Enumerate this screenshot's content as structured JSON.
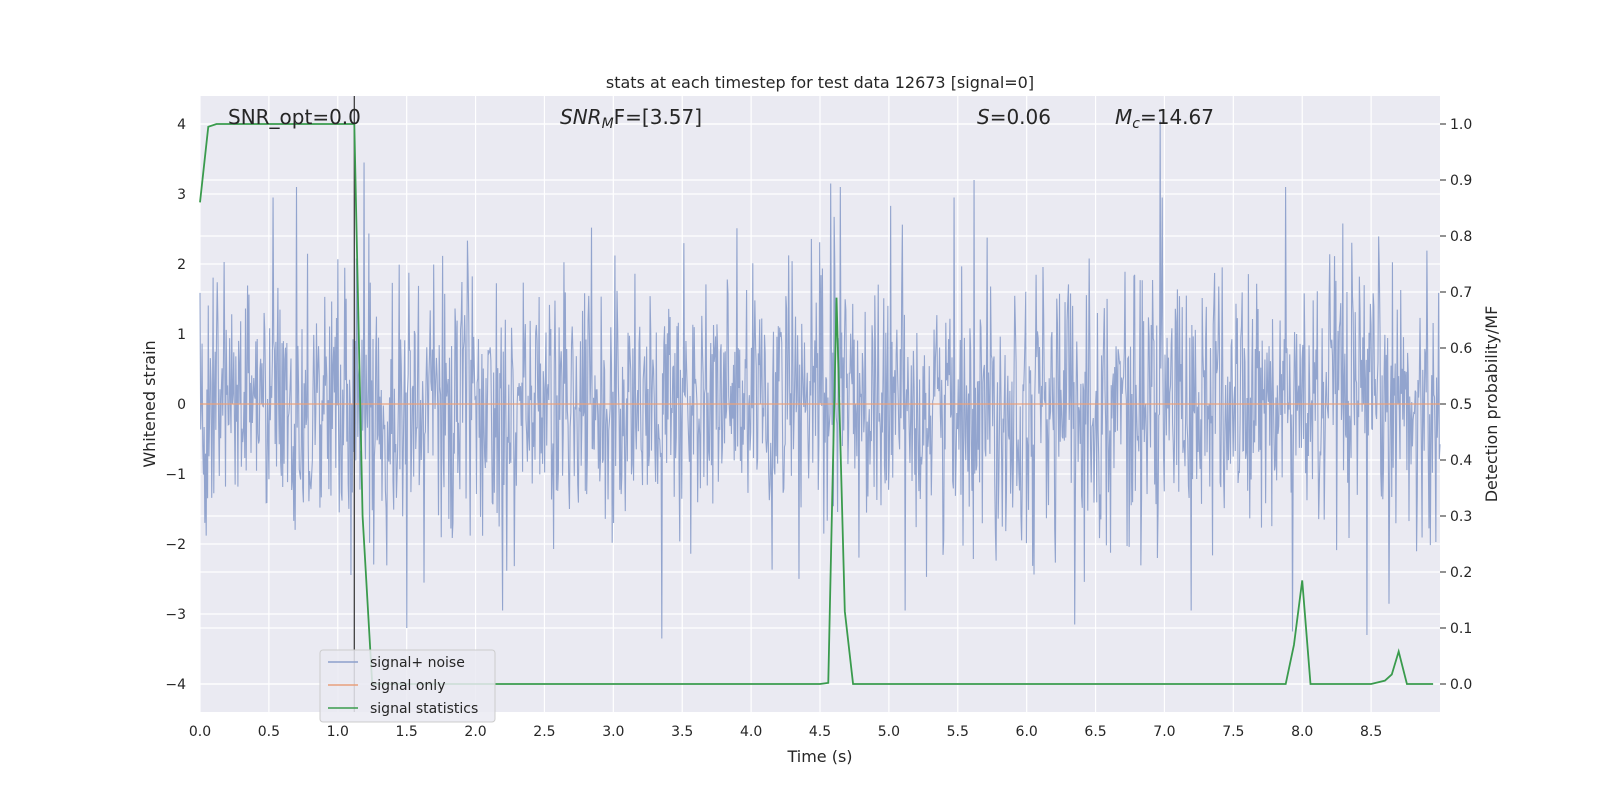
{
  "chart_data": {
    "type": "line",
    "title": "stats at each timestep for test data 12673 [signal=0]",
    "xlabel": "Time (s)",
    "ylabel_left": "Whitened strain",
    "ylabel_right": "Detection probability/MF",
    "xlim": [
      0,
      9.0
    ],
    "ylim_left": [
      -4.4,
      4.4
    ],
    "ylim_right": [
      -0.05,
      1.05
    ],
    "grid": true,
    "x_ticks": [
      "0.0",
      "0.5",
      "1.0",
      "1.5",
      "2.0",
      "2.5",
      "3.0",
      "3.5",
      "4.0",
      "4.5",
      "5.0",
      "5.5",
      "6.0",
      "6.5",
      "7.0",
      "7.5",
      "8.0",
      "8.5"
    ],
    "y_ticks_left": [
      "−4",
      "−3",
      "−2",
      "−1",
      "0",
      "1",
      "2",
      "3",
      "4"
    ],
    "y_ticks_right": [
      "0.0",
      "0.1",
      "0.2",
      "0.3",
      "0.4",
      "0.5",
      "0.6",
      "0.7",
      "0.8",
      "0.9",
      "1.0"
    ],
    "annotations": {
      "snr_opt": "SNR_opt=0.0",
      "snr_mf_main": "SNR",
      "snr_mf_sub": "M",
      "snr_mf_rest": "F=[3.57]",
      "s_main": "S",
      "s_rest": "=0.06",
      "mc_main": "M",
      "mc_sub": "c",
      "mc_rest": "=14.67"
    },
    "vertical_line_x": 1.12,
    "legend": {
      "placement": "lower-left",
      "entries": [
        "signal+ noise",
        "signal only",
        "signal statistics"
      ]
    },
    "series": [
      {
        "name": "signal+ noise",
        "axis": "left",
        "color": "#8da0cb",
        "envelope": "whitened noise, typical |y| ≈ 2.0, peaks to ±4",
        "peaks": [
          {
            "x": 0.7,
            "y": 3.1
          },
          {
            "x": 1.19,
            "y": 3.45
          },
          {
            "x": 4.58,
            "y": 3.15
          },
          {
            "x": 4.65,
            "y": 3.1
          },
          {
            "x": 5.62,
            "y": 3.2
          },
          {
            "x": 6.97,
            "y": 4.05
          },
          {
            "x": 7.88,
            "y": 3.1
          },
          {
            "x": 1.5,
            "y": -3.2
          },
          {
            "x": 3.35,
            "y": -3.35
          },
          {
            "x": 6.35,
            "y": -3.15
          },
          {
            "x": 7.93,
            "y": -3.25
          },
          {
            "x": 8.47,
            "y": -3.3
          }
        ]
      },
      {
        "name": "signal only",
        "axis": "left",
        "color": "#e8a07c",
        "x": [
          0,
          9.0
        ],
        "y": [
          0,
          0
        ]
      },
      {
        "name": "signal statistics",
        "axis": "right",
        "color": "#3a9b4d",
        "x": [
          0.0,
          0.06,
          0.12,
          0.2,
          0.5,
          0.8,
          1.0,
          1.12,
          1.18,
          1.25,
          1.32,
          1.5,
          2.0,
          3.0,
          4.0,
          4.5,
          4.56,
          4.62,
          4.68,
          4.74,
          5.0,
          6.0,
          7.0,
          7.5,
          7.88,
          7.94,
          8.0,
          8.06,
          8.12,
          8.5,
          8.6,
          8.65,
          8.7,
          8.76,
          8.85,
          8.95
        ],
        "y": [
          0.86,
          0.995,
          1.0,
          1.0,
          1.0,
          1.0,
          1.0,
          1.0,
          0.3,
          0.0,
          0.0,
          0.0,
          0.0,
          0.0,
          0.0,
          0.0,
          0.002,
          0.69,
          0.13,
          0.0,
          0.0,
          0.0,
          0.0,
          0.0,
          0.0,
          0.07,
          0.185,
          0.0,
          0.0,
          0.0,
          0.006,
          0.017,
          0.058,
          0.0,
          0.0,
          0.0
        ]
      }
    ]
  }
}
